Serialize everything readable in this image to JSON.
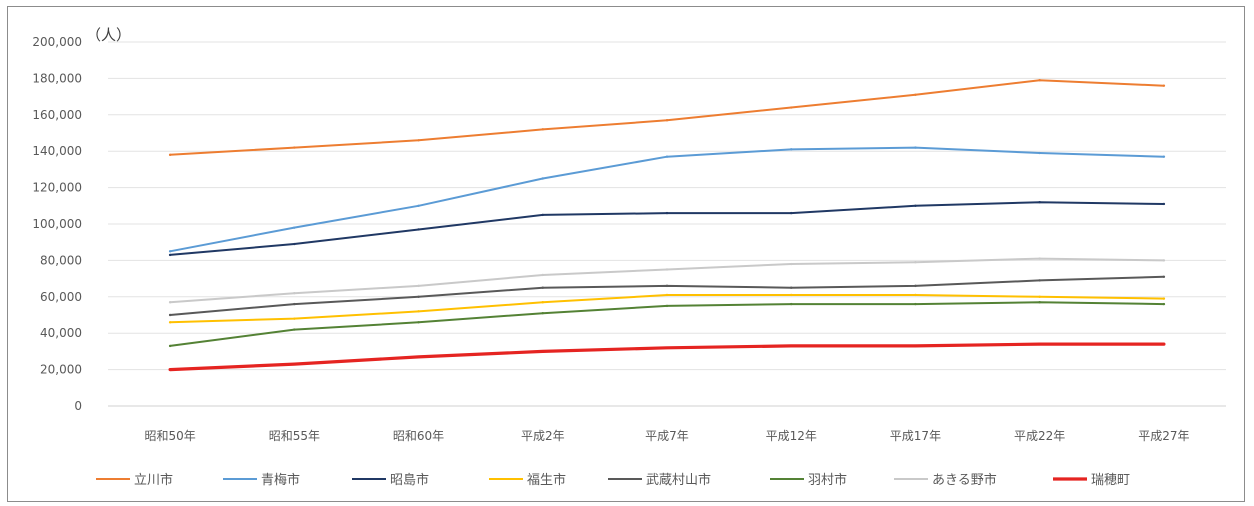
{
  "chart_data": {
    "type": "line",
    "title": "",
    "unit_label": "（人）",
    "xlabel": "",
    "ylabel": "",
    "categories": [
      "昭和50年",
      "昭和55年",
      "昭和60年",
      "平成2年",
      "平成7年",
      "平成12年",
      "平成17年",
      "平成22年",
      "平成27年"
    ],
    "ylim": [
      0,
      200000
    ],
    "y_ticks": [
      {
        "value": 0,
        "label": "0"
      },
      {
        "value": 20000,
        "label": "20,000"
      },
      {
        "value": 40000,
        "label": "40,000"
      },
      {
        "value": 60000,
        "label": "60,000"
      },
      {
        "value": 80000,
        "label": "80,000"
      },
      {
        "value": 100000,
        "label": "100,000"
      },
      {
        "value": 120000,
        "label": "120,000"
      },
      {
        "value": 140000,
        "label": "140,000"
      },
      {
        "value": 160000,
        "label": "160,000"
      },
      {
        "value": 180000,
        "label": "180,000"
      },
      {
        "value": 200000,
        "label": "200,000"
      }
    ],
    "grid": "horizontal",
    "legend_position": "bottom",
    "series": [
      {
        "name": "立川市",
        "color": "#ed7d31",
        "values": [
          138000,
          142000,
          146000,
          152000,
          157000,
          164000,
          171000,
          179000,
          176000
        ]
      },
      {
        "name": "青梅市",
        "color": "#5b9bd5",
        "values": [
          85000,
          98000,
          110000,
          125000,
          137000,
          141000,
          142000,
          139000,
          137000
        ]
      },
      {
        "name": "昭島市",
        "color": "#203864",
        "values": [
          83000,
          89000,
          97000,
          105000,
          106000,
          106000,
          110000,
          112000,
          111000
        ]
      },
      {
        "name": "福生市",
        "color": "#ffc000",
        "values": [
          46000,
          48000,
          52000,
          57000,
          61000,
          61000,
          61000,
          60000,
          59000
        ]
      },
      {
        "name": "武蔵村山市",
        "color": "#595959",
        "values": [
          50000,
          56000,
          60000,
          65000,
          66000,
          65000,
          66000,
          69000,
          71000
        ]
      },
      {
        "name": "羽村市",
        "color": "#548235",
        "values": [
          33000,
          42000,
          46000,
          51000,
          55000,
          56000,
          56000,
          57000,
          56000
        ]
      },
      {
        "name": "あきる野市",
        "color": "#c9c9c9",
        "values": [
          57000,
          62000,
          66000,
          72000,
          75000,
          78000,
          79000,
          81000,
          80000
        ]
      },
      {
        "name": "瑞穂町",
        "color": "#e52421",
        "values": [
          20000,
          23000,
          27000,
          30000,
          32000,
          33000,
          33000,
          34000,
          34000
        ]
      }
    ]
  }
}
